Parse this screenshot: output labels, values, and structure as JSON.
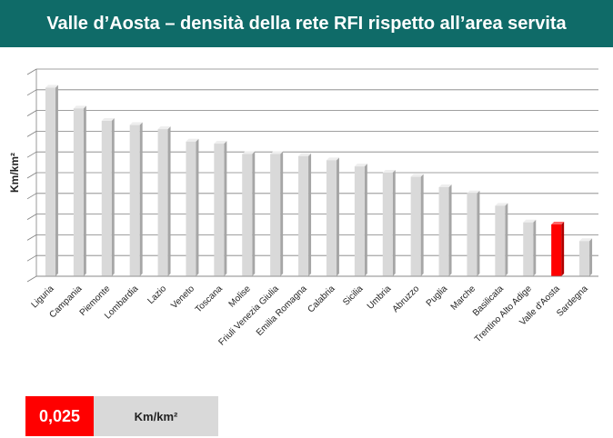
{
  "header": {
    "title": "Valle d’Aosta – densità della rete RFI rispetto all’area servita"
  },
  "chart_data": {
    "type": "bar",
    "categories": [
      "Liguria",
      "Campania",
      "Piemonte",
      "Lombardia",
      "Lazio",
      "Veneto",
      "Toscana",
      "Molise",
      "Friuli Venezia Giulia",
      "Emilia Romagna",
      "Calabria",
      "Sicilia",
      "Umbria",
      "Abruzzo",
      "Puglia",
      "Marche",
      "Basilicata",
      "Trentino Alto Adige",
      "Valle d'Aosta",
      "Sardegna"
    ],
    "values": [
      0.091,
      0.081,
      0.075,
      0.073,
      0.071,
      0.065,
      0.064,
      0.059,
      0.059,
      0.058,
      0.056,
      0.053,
      0.05,
      0.048,
      0.043,
      0.04,
      0.034,
      0.026,
      0.025,
      0.017
    ],
    "highlight": "Valle d'Aosta",
    "ylabel": "Km/km²",
    "ylim": [
      0,
      0.1
    ],
    "grid": true,
    "colors": {
      "bar": "#d9d9d9",
      "highlight": "#ff0000",
      "grid": "#808080"
    }
  },
  "legend": {
    "value": "0,025",
    "unit": "Km/km²"
  }
}
